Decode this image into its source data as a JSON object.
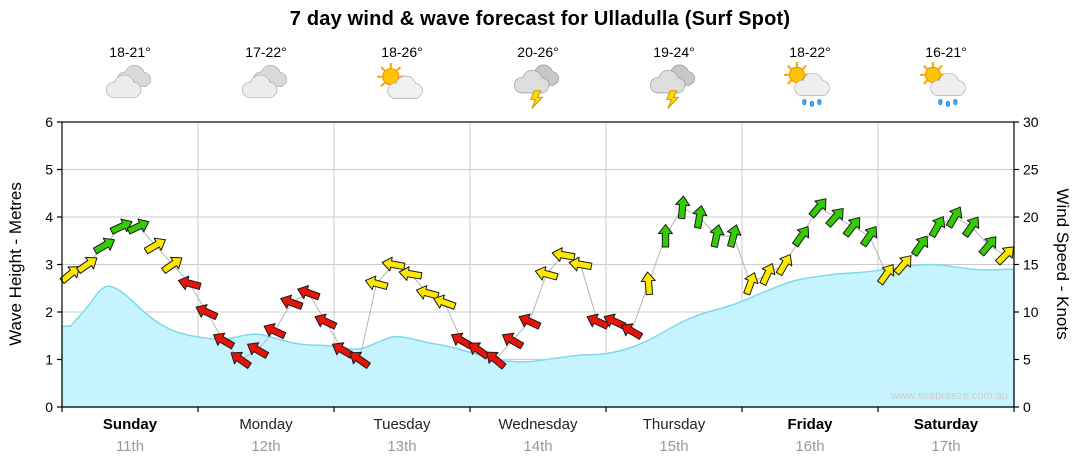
{
  "title": "7 day wind & wave forecast for Ulladulla (Surf Spot)",
  "watermark": "www.seabreeze.com.au",
  "colors": {
    "green": "#33CC00",
    "yellow": "#FFE800",
    "red": "#E81309",
    "wave_fill": "#C6F3FD",
    "wave_edge": "#7FD8EA",
    "grid": "#CCCCCC",
    "axis": "#000000",
    "wind_line": "#B5B5B5",
    "date_gray": "#999999",
    "watermark_gray": "#CDCDCD"
  },
  "axes": {
    "left_label": "Wave Height - Metres",
    "right_label": "Wind Speed - Knots",
    "left_ticks": [
      0,
      1,
      2,
      3,
      4,
      5,
      6
    ],
    "right_ticks": [
      0,
      5,
      10,
      15,
      20,
      25,
      30
    ]
  },
  "days": [
    {
      "name": "Sunday",
      "date": "11th",
      "temp": "18-21°",
      "icon": "cloudy",
      "bold": true
    },
    {
      "name": "Monday",
      "date": "12th",
      "temp": "17-22°",
      "icon": "cloudy",
      "bold": false
    },
    {
      "name": "Tuesday",
      "date": "13th",
      "temp": "18-26°",
      "icon": "partly-sunny",
      "bold": false
    },
    {
      "name": "Wednesday",
      "date": "14th",
      "temp": "20-26°",
      "icon": "storm",
      "bold": false
    },
    {
      "name": "Thursday",
      "date": "15th",
      "temp": "19-24°",
      "icon": "storm",
      "bold": false
    },
    {
      "name": "Friday",
      "date": "16th",
      "temp": "18-22°",
      "icon": "sun-shower",
      "bold": true
    },
    {
      "name": "Saturday",
      "date": "17th",
      "temp": "16-21°",
      "icon": "sun-shower",
      "bold": true
    }
  ],
  "chart_data": {
    "type": "area",
    "title": "7 day wind & wave forecast for Ulladulla (Surf Spot)",
    "x_axis": "time across 7 days, 3-hourly samples (8 per day)",
    "samples_per_day": 8,
    "left_axis": {
      "label": "Wave Height - Metres",
      "range": [
        0,
        6
      ]
    },
    "right_axis": {
      "label": "Wind Speed - Knots",
      "range": [
        0,
        30
      ]
    },
    "ylim_wave": [
      0,
      6
    ],
    "ylim_wind": [
      0,
      30
    ],
    "wave_height_m": [
      1.7,
      2.1,
      2.6,
      2.45,
      2.1,
      1.8,
      1.6,
      1.5,
      1.45,
      1.4,
      1.5,
      1.55,
      1.45,
      1.35,
      1.3,
      1.3,
      1.25,
      1.2,
      1.35,
      1.5,
      1.45,
      1.35,
      1.3,
      1.2,
      1.1,
      1.0,
      0.95,
      0.95,
      1.0,
      1.05,
      1.1,
      1.1,
      1.15,
      1.25,
      1.4,
      1.6,
      1.8,
      1.95,
      2.05,
      2.15,
      2.3,
      2.45,
      2.6,
      2.7,
      2.75,
      2.8,
      2.82,
      2.85,
      2.9,
      2.95,
      3.0,
      3.0,
      2.95,
      2.9,
      2.88,
      2.9
    ],
    "wind_samples": [
      {
        "kn": 14,
        "deg": -40,
        "c": "y"
      },
      {
        "kn": 15,
        "deg": -35,
        "c": "y"
      },
      {
        "kn": 17,
        "deg": -30,
        "c": "g"
      },
      {
        "kn": 19,
        "deg": -25,
        "c": "g"
      },
      {
        "kn": 19,
        "deg": -25,
        "c": "g"
      },
      {
        "kn": 17,
        "deg": -30,
        "c": "y"
      },
      {
        "kn": 15,
        "deg": -35,
        "c": "y"
      },
      {
        "kn": 13,
        "deg": 195,
        "c": "r"
      },
      {
        "kn": 10,
        "deg": 205,
        "c": "r"
      },
      {
        "kn": 7,
        "deg": 210,
        "c": "r"
      },
      {
        "kn": 5,
        "deg": 215,
        "c": "r"
      },
      {
        "kn": 6,
        "deg": 210,
        "c": "r"
      },
      {
        "kn": 8,
        "deg": 205,
        "c": "r"
      },
      {
        "kn": 11,
        "deg": 200,
        "c": "r"
      },
      {
        "kn": 12,
        "deg": 200,
        "c": "r"
      },
      {
        "kn": 9,
        "deg": 205,
        "c": "r"
      },
      {
        "kn": 6,
        "deg": 210,
        "c": "r"
      },
      {
        "kn": 5,
        "deg": 215,
        "c": "r"
      },
      {
        "kn": 13,
        "deg": 195,
        "c": "y"
      },
      {
        "kn": 15,
        "deg": 190,
        "c": "y"
      },
      {
        "kn": 14,
        "deg": 190,
        "c": "y"
      },
      {
        "kn": 12,
        "deg": 195,
        "c": "y"
      },
      {
        "kn": 11,
        "deg": 200,
        "c": "y"
      },
      {
        "kn": 7,
        "deg": 210,
        "c": "r"
      },
      {
        "kn": 6,
        "deg": 215,
        "c": "r"
      },
      {
        "kn": 5,
        "deg": 220,
        "c": "r"
      },
      {
        "kn": 7,
        "deg": 210,
        "c": "r"
      },
      {
        "kn": 9,
        "deg": 205,
        "c": "r"
      },
      {
        "kn": 14,
        "deg": 195,
        "c": "y"
      },
      {
        "kn": 16,
        "deg": 190,
        "c": "y"
      },
      {
        "kn": 15,
        "deg": 190,
        "c": "y"
      },
      {
        "kn": 9,
        "deg": 205,
        "c": "r"
      },
      {
        "kn": 9,
        "deg": 205,
        "c": "r"
      },
      {
        "kn": 8,
        "deg": 210,
        "c": "r"
      },
      {
        "kn": 13,
        "deg": -95,
        "c": "y"
      },
      {
        "kn": 18,
        "deg": -90,
        "c": "g"
      },
      {
        "kn": 21,
        "deg": -85,
        "c": "g"
      },
      {
        "kn": 20,
        "deg": -80,
        "c": "g"
      },
      {
        "kn": 18,
        "deg": -78,
        "c": "g"
      },
      {
        "kn": 18,
        "deg": -75,
        "c": "g"
      },
      {
        "kn": 13,
        "deg": -70,
        "c": "y"
      },
      {
        "kn": 14,
        "deg": -65,
        "c": "y"
      },
      {
        "kn": 15,
        "deg": -60,
        "c": "y"
      },
      {
        "kn": 18,
        "deg": -55,
        "c": "g"
      },
      {
        "kn": 21,
        "deg": -50,
        "c": "g"
      },
      {
        "kn": 20,
        "deg": -48,
        "c": "g"
      },
      {
        "kn": 19,
        "deg": -52,
        "c": "g"
      },
      {
        "kn": 18,
        "deg": -55,
        "c": "g"
      },
      {
        "kn": 14,
        "deg": -55,
        "c": "y"
      },
      {
        "kn": 15,
        "deg": -50,
        "c": "y"
      },
      {
        "kn": 17,
        "deg": -55,
        "c": "g"
      },
      {
        "kn": 19,
        "deg": -60,
        "c": "g"
      },
      {
        "kn": 20,
        "deg": -60,
        "c": "g"
      },
      {
        "kn": 19,
        "deg": -55,
        "c": "g"
      },
      {
        "kn": 17,
        "deg": -50,
        "c": "g"
      },
      {
        "kn": 16,
        "deg": -45,
        "c": "y"
      }
    ]
  }
}
